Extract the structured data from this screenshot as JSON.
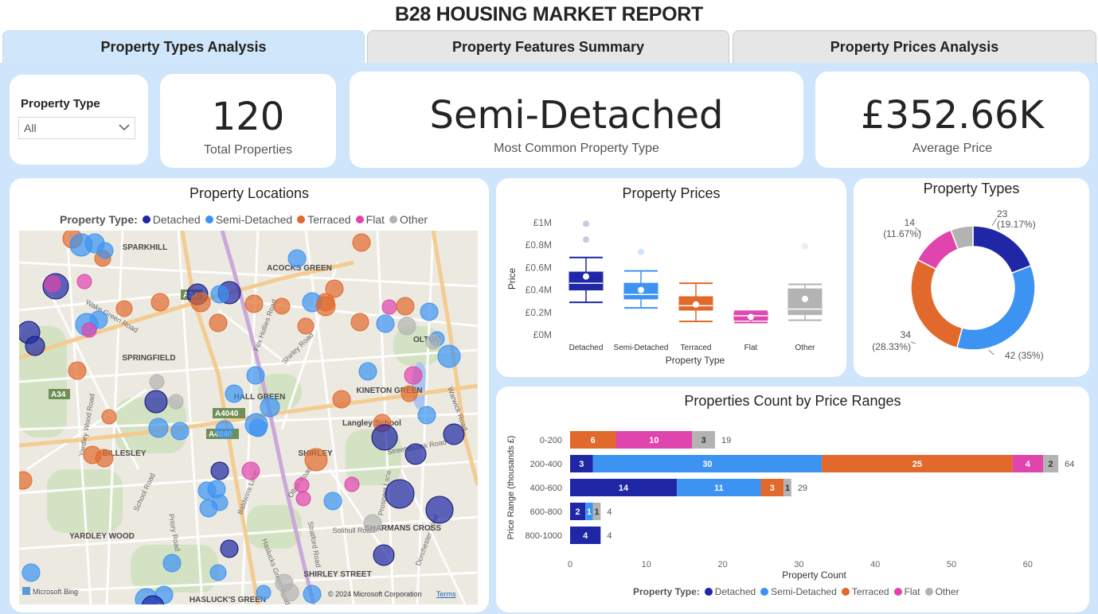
{
  "report_title": "B28 HOUSING MARKET REPORT",
  "tabs": [
    {
      "label": "Property Types Analysis",
      "active": true
    },
    {
      "label": "Property Features Summary",
      "active": false
    },
    {
      "label": "Property Prices Analysis",
      "active": false
    }
  ],
  "colors": {
    "detached": "#1f27a6",
    "semi_detached": "#3c93f2",
    "terraced": "#e1692c",
    "flat": "#e044ad",
    "other": "#b3b3b3",
    "background": "#cfe5fb"
  },
  "filter": {
    "label": "Property Type",
    "value": "All"
  },
  "kpis": {
    "total": {
      "value": "120",
      "label": "Total Properties"
    },
    "common": {
      "value": "Semi-Detached",
      "label": "Most Common Property Type"
    },
    "avg": {
      "value": "£352.66K",
      "label": "Average Price"
    }
  },
  "map": {
    "title": "Property Locations",
    "legend_title": "Property Type:",
    "legend": [
      "Detached",
      "Semi-Detached",
      "Terraced",
      "Flat",
      "Other"
    ],
    "place_labels": [
      "SPARKHILL",
      "ACOCKS GREEN",
      "SPRINGFIELD",
      "HALL GREEN",
      "KINETON GREEN",
      "OLTON",
      "Langley School",
      "SHIRLEY",
      "BILLESLEY",
      "YARDLEY WOOD",
      "SHARMANS CROSS",
      "SHIRLEY STREET",
      "HASLUCK'S GREEN",
      "A34",
      "A4040",
      "A4040",
      "A34"
    ],
    "road_labels": [
      "Fox Hollies Road",
      "Shirley Road",
      "Wake Green Road",
      "Yardley Wood Road",
      "Stratford Road",
      "Warwick Road",
      "Streetsbrook Road",
      "Prospect Lane",
      "School Road",
      "Priory Road",
      "Baldwins Lane",
      "Olton Road",
      "Solihull Road",
      "Dorchester Road",
      "Haslucks Green Road"
    ],
    "attribution": "© 2024 Microsoft Corporation",
    "terms": "Terms",
    "brand": "Microsoft Bing"
  },
  "chart_data": [
    {
      "type": "box",
      "title": "Property Prices",
      "xlabel": "Property Type",
      "ylabel": "Price",
      "categories": [
        "Detached",
        "Semi-Detached",
        "Terraced",
        "Flat",
        "Other"
      ],
      "yticks": [
        "£0M",
        "£0.2M",
        "£0.4M",
        "£0.6M",
        "£0.8M",
        "£1M"
      ],
      "ylim": [
        0,
        1000000
      ],
      "boxes": [
        {
          "name": "Detached",
          "min": 290000,
          "q1": 400000,
          "median": 460000,
          "q3": 560000,
          "max": 690000,
          "mean": 520000,
          "outliers": [
            850000,
            990000
          ]
        },
        {
          "name": "Semi-Detached",
          "min": 240000,
          "q1": 320000,
          "median": 360000,
          "q3": 460000,
          "max": 570000,
          "mean": 400000,
          "outliers": [
            740000
          ]
        },
        {
          "name": "Terraced",
          "min": 120000,
          "q1": 220000,
          "median": 260000,
          "q3": 340000,
          "max": 460000,
          "mean": 270000,
          "outliers": []
        },
        {
          "name": "Flat",
          "min": 110000,
          "q1": 130000,
          "median": 170000,
          "q3": 200000,
          "max": 210000,
          "mean": 160000,
          "outliers": []
        },
        {
          "name": "Other",
          "min": 130000,
          "q1": 180000,
          "median": 230000,
          "q3": 410000,
          "max": 450000,
          "mean": 320000,
          "outliers": [
            790000
          ]
        }
      ]
    },
    {
      "type": "pie",
      "title": "Property Types",
      "slices": [
        {
          "name": "Detached",
          "value": 23,
          "label": "23",
          "pct": "(19.17%)"
        },
        {
          "name": "Semi-Detached",
          "value": 42,
          "label": "42 (35%)",
          "pct": ""
        },
        {
          "name": "Terraced",
          "value": 34,
          "label": "34",
          "pct": "(28.33%)"
        },
        {
          "name": "Flat",
          "value": 14,
          "label": "14",
          "pct": "(11.67%)"
        },
        {
          "name": "Other",
          "value": 7,
          "label": "",
          "pct": ""
        }
      ]
    },
    {
      "type": "bar",
      "orientation": "horizontal",
      "stacked": true,
      "title": "Properties Count by Price Ranges",
      "xlabel": "Property Count",
      "ylabel": "Price Range (thousands £)",
      "categories": [
        "0-200",
        "200-400",
        "400-600",
        "600-800",
        "800-1000"
      ],
      "xticks": [
        0,
        10,
        20,
        30,
        40,
        50,
        60
      ],
      "xlim": [
        0,
        65
      ],
      "series": [
        {
          "name": "Detached",
          "values": [
            0,
            3,
            14,
            2,
            4
          ]
        },
        {
          "name": "Semi-Detached",
          "values": [
            0,
            30,
            11,
            1,
            0
          ]
        },
        {
          "name": "Terraced",
          "values": [
            6,
            25,
            3,
            0,
            0
          ]
        },
        {
          "name": "Flat",
          "values": [
            10,
            4,
            0,
            0,
            0
          ]
        },
        {
          "name": "Other",
          "values": [
            3,
            2,
            1,
            1,
            0
          ]
        }
      ],
      "totals": [
        19,
        64,
        29,
        4,
        4
      ],
      "legend_title": "Property Type:",
      "legend": [
        "Detached",
        "Semi-Detached",
        "Terraced",
        "Flat",
        "Other"
      ]
    }
  ]
}
